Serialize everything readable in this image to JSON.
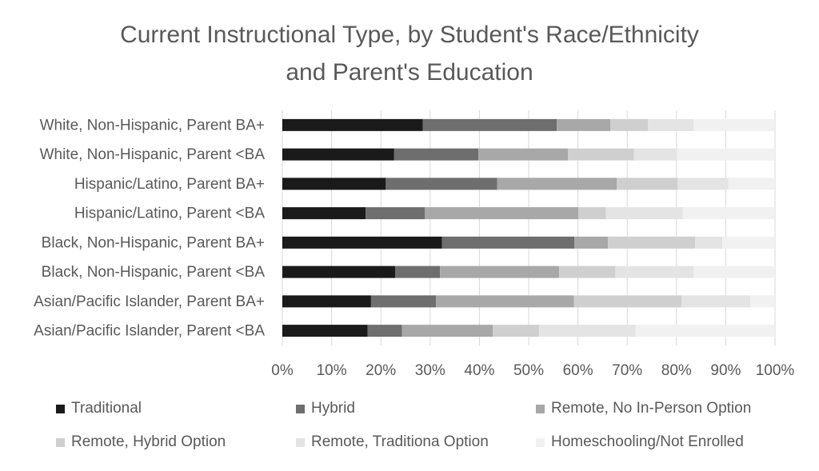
{
  "chart_data": {
    "type": "bar",
    "orientation": "horizontal",
    "stacked": true,
    "title_lines": [
      "Current Instructional Type, by Student's Race/Ethnicity",
      "and Parent's Education"
    ],
    "categories": [
      "White, Non-Hispanic, Parent BA+",
      "White, Non-Hispanic, Parent <BA",
      "Hispanic/Latino, Parent BA+",
      "Hispanic/Latino, Parent <BA",
      "Black, Non-Hispanic, Parent BA+",
      "Black, Non-Hispanic, Parent <BA",
      "Asian/Pacific Islander, Parent BA+",
      "Asian/Pacific Islander, Parent <BA"
    ],
    "series": [
      {
        "name": "Traditional",
        "color": "#1a1a1a",
        "values": [
          28.5,
          22.7,
          21.0,
          16.9,
          32.4,
          22.9,
          18.0,
          17.3
        ]
      },
      {
        "name": "Hybrid",
        "color": "#6e6e6e",
        "values": [
          27.2,
          17.1,
          22.6,
          12.0,
          26.9,
          9.1,
          13.2,
          7.0
        ]
      },
      {
        "name": "Remote, No In-Person Option",
        "color": "#a8a8a8",
        "values": [
          10.9,
          18.2,
          24.3,
          31.2,
          6.8,
          24.2,
          28.0,
          18.4
        ]
      },
      {
        "name": "Remote, Hybrid Option",
        "color": "#cfcfcf",
        "values": [
          7.6,
          13.4,
          12.3,
          5.6,
          17.7,
          11.4,
          21.8,
          9.4
        ]
      },
      {
        "name": "Remote, Traditiona Option",
        "color": "#e4e4e4",
        "values": [
          9.3,
          8.7,
          10.3,
          15.6,
          5.5,
          15.9,
          14.0,
          19.6
        ]
      },
      {
        "name": "Homeschooling/Not Enrolled",
        "color": "#f1f1f1",
        "values": [
          16.5,
          19.9,
          9.5,
          18.7,
          10.7,
          16.5,
          5.0,
          28.3
        ]
      }
    ],
    "x_ticks": [
      "0%",
      "10%",
      "20%",
      "30%",
      "40%",
      "50%",
      "60%",
      "70%",
      "80%",
      "90%",
      "100%"
    ],
    "xlim": [
      0,
      100
    ],
    "grid": "vertical",
    "legend_position": "bottom"
  }
}
